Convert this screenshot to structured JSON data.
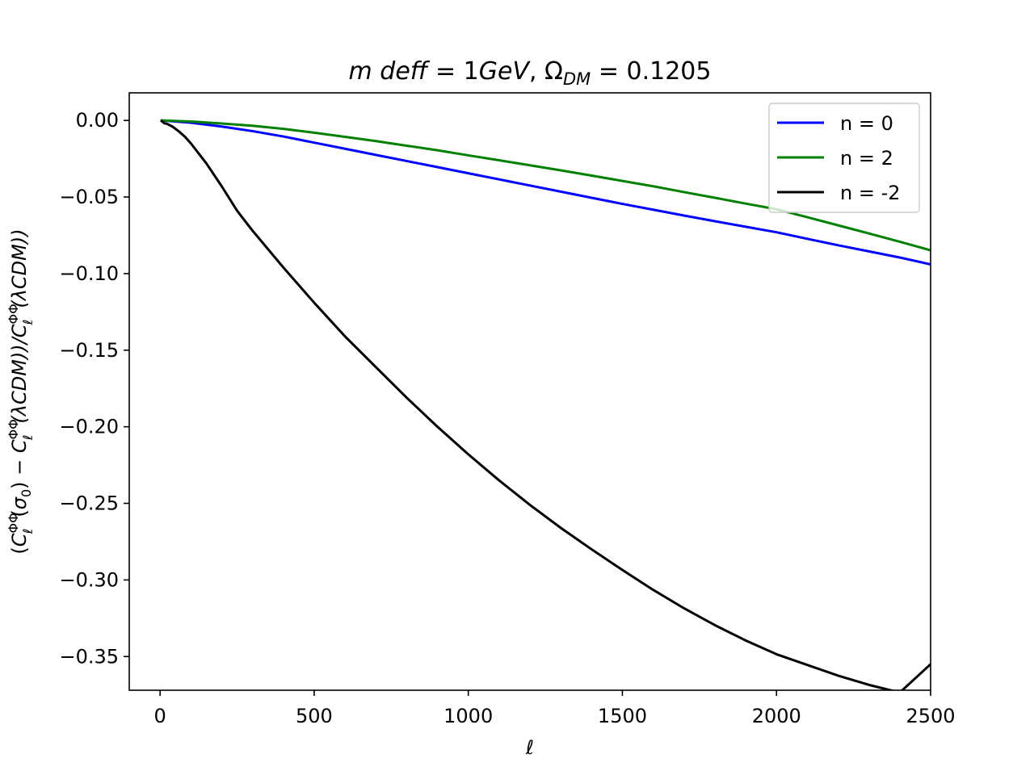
{
  "chart_data": {
    "type": "line",
    "title_parts": {
      "m": "m",
      "deff": "deff",
      "eq1": " = 1",
      "gev": "GeV",
      "comma": ", Ω",
      "dm": "DM",
      "eq2": " = 0.1205"
    },
    "xlabel": "ℓ",
    "ylabel": "(C_ℓ^ΦΦ(σ₀) − C_ℓ^ΦΦ(λCDM))/C_ℓ^ΦΦ(λCDM))",
    "ylabel_parts": {
      "open": "(",
      "c1": "C",
      "sup1": "ΦΦ",
      "sub1": "ℓ",
      "arg1": "(",
      "sigma": "σ",
      "zero": "0",
      "close1": ") − ",
      "c2": "C",
      "sup2": "ΦΦ",
      "sub2": "ℓ",
      "arg2": "(λCDM))/",
      "c3": "C",
      "sup3": "ΦΦ",
      "sub3": "ℓ",
      "arg3": "(λCDM))"
    },
    "xlim": [
      -100,
      2500
    ],
    "ylim": [
      -0.372,
      0.018
    ],
    "xticks": [
      0,
      500,
      1000,
      1500,
      2000,
      2500
    ],
    "xtick_labels": [
      "0",
      "500",
      "1000",
      "1500",
      "2000",
      "2500"
    ],
    "yticks": [
      0.0,
      -0.05,
      -0.1,
      -0.15,
      -0.2,
      -0.25,
      -0.3,
      -0.35
    ],
    "ytick_labels": [
      "0.00",
      "−0.05",
      "−0.10",
      "−0.15",
      "−0.20",
      "−0.25",
      "−0.30",
      "−0.35"
    ],
    "grid": false,
    "legend_position": "top-right",
    "series": [
      {
        "name": "n = 0",
        "color": "#0000ff",
        "x": [
          2,
          100,
          200,
          300,
          400,
          500,
          600,
          700,
          800,
          900,
          1000,
          1100,
          1200,
          1300,
          1400,
          1500,
          1600,
          1700,
          1800,
          1900,
          2000,
          2100,
          2200,
          2300,
          2400,
          2500
        ],
        "y": [
          0.0,
          -0.0015,
          -0.004,
          -0.007,
          -0.0105,
          -0.0145,
          -0.0185,
          -0.0225,
          -0.0265,
          -0.0305,
          -0.0345,
          -0.0385,
          -0.0425,
          -0.0465,
          -0.0505,
          -0.0545,
          -0.0583,
          -0.0621,
          -0.0658,
          -0.0694,
          -0.073,
          -0.0773,
          -0.0815,
          -0.0855,
          -0.0895,
          -0.094
        ]
      },
      {
        "name": "n = 2",
        "color": "#008000",
        "x": [
          2,
          100,
          200,
          300,
          400,
          500,
          600,
          700,
          800,
          900,
          1000,
          1100,
          1200,
          1300,
          1400,
          1500,
          1600,
          1700,
          1800,
          1900,
          2000,
          2100,
          2200,
          2300,
          2400,
          2500
        ],
        "y": [
          0.0,
          -0.0007,
          -0.002,
          -0.0035,
          -0.0055,
          -0.008,
          -0.0107,
          -0.0135,
          -0.0165,
          -0.0195,
          -0.0228,
          -0.026,
          -0.0293,
          -0.0326,
          -0.036,
          -0.0395,
          -0.043,
          -0.0468,
          -0.0505,
          -0.0543,
          -0.058,
          -0.0632,
          -0.0685,
          -0.0738,
          -0.0792,
          -0.0848
        ]
      },
      {
        "name": "n = -2",
        "color": "#000000",
        "x": [
          2,
          10,
          15,
          20,
          40,
          60,
          80,
          100,
          150,
          200,
          250,
          300,
          400,
          500,
          600,
          700,
          800,
          900,
          1000,
          1100,
          1200,
          1300,
          1400,
          1500,
          1600,
          1700,
          1800,
          1900,
          2000,
          2100,
          2200,
          2300,
          2400,
          2500
        ],
        "y": [
          0.0,
          -0.0012,
          -0.002,
          -0.002,
          -0.004,
          -0.007,
          -0.0105,
          -0.015,
          -0.028,
          -0.043,
          -0.059,
          -0.072,
          -0.096,
          -0.119,
          -0.141,
          -0.161,
          -0.181,
          -0.2,
          -0.218,
          -0.235,
          -0.251,
          -0.266,
          -0.28,
          -0.2935,
          -0.3065,
          -0.3185,
          -0.3295,
          -0.3395,
          -0.3485,
          -0.3555,
          -0.3625,
          -0.3685,
          -0.3735,
          -0.355
        ]
      }
    ]
  }
}
